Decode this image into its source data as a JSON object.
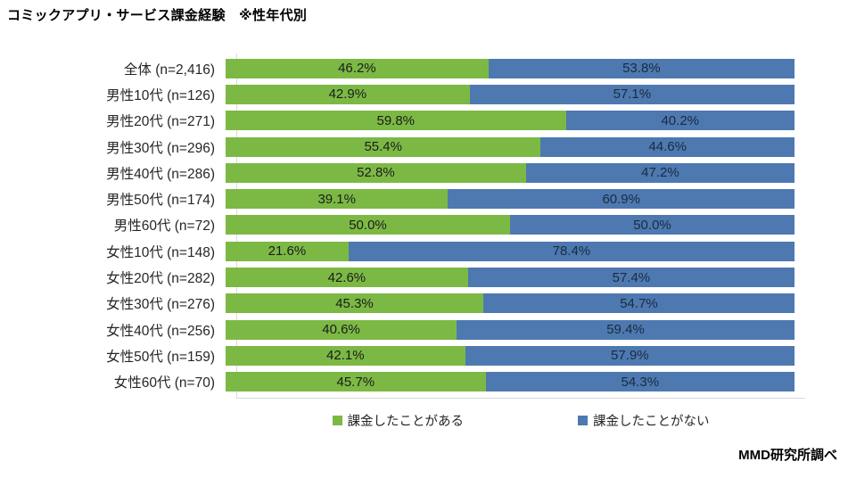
{
  "title": "コミックアプリ・サービス課金経験　※性年代別",
  "source": "MMD研究所調べ",
  "colors": {
    "paid_green": "#7CB944",
    "not_paid_blue": "#4D79B0",
    "axis_line": "#d9d9d9"
  },
  "chart_data": {
    "type": "bar",
    "orientation": "horizontal",
    "stacked": true,
    "unit": "%",
    "xlim": [
      0,
      100
    ],
    "grid": false,
    "legend_position": "bottom",
    "value_labels": "centered_one_decimal_percent",
    "categories": [
      "全体 (n=2,416)",
      "男性10代 (n=126)",
      "男性20代 (n=271)",
      "男性30代 (n=296)",
      "男性40代 (n=286)",
      "男性50代 (n=174)",
      "男性60代 (n=72)",
      "女性10代 (n=148)",
      "女性20代 (n=282)",
      "女性30代 (n=276)",
      "女性40代 (n=256)",
      "女性50代 (n=159)",
      "女性60代 (n=70)"
    ],
    "series": [
      {
        "name": "課金したことがある",
        "color": "#7CB944",
        "values": [
          46.2,
          42.9,
          59.8,
          55.4,
          52.8,
          39.1,
          50.0,
          21.6,
          42.6,
          45.3,
          40.6,
          42.1,
          45.7
        ]
      },
      {
        "name": "課金したことがない",
        "color": "#4D79B0",
        "values": [
          53.8,
          57.1,
          40.2,
          44.6,
          47.2,
          60.9,
          50.0,
          78.4,
          57.4,
          54.7,
          59.4,
          57.9,
          54.3
        ]
      }
    ]
  }
}
